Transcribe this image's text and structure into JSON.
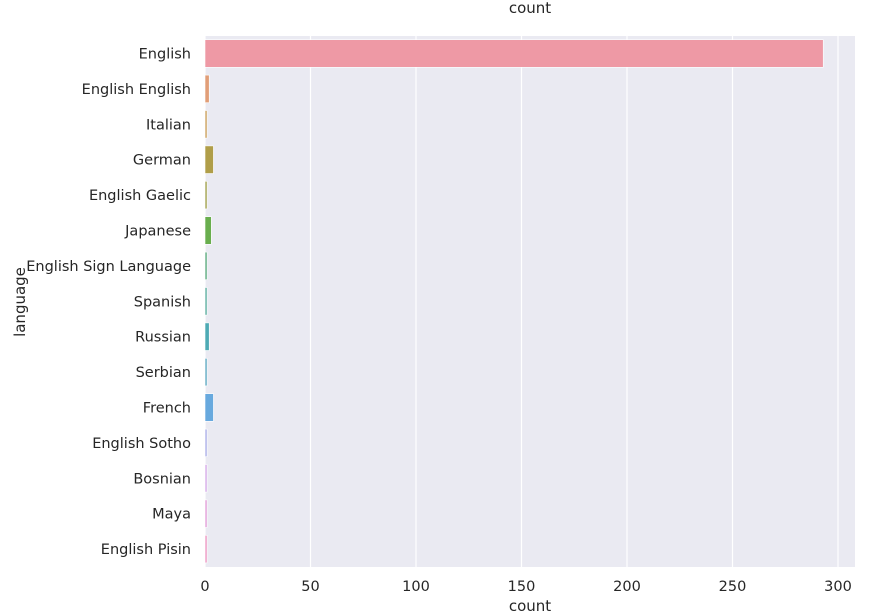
{
  "chart_data": {
    "type": "bar",
    "orientation": "horizontal",
    "title": "count",
    "xlabel": "count",
    "ylabel": "language",
    "xlim": [
      0,
      308
    ],
    "xticks": [
      0,
      50,
      100,
      150,
      200,
      250,
      300
    ],
    "grid": true,
    "categories": [
      "English",
      "English English",
      "Italian",
      "German",
      "English Gaelic",
      "Japanese",
      "English Sign Language",
      "Spanish",
      "Russian",
      "Serbian",
      "French",
      "English Sotho",
      "Bosnian",
      "Maya",
      "English Pisin"
    ],
    "values": [
      293,
      2,
      1,
      4,
      1,
      3,
      1,
      1,
      2,
      1,
      4,
      1,
      1,
      1,
      1
    ],
    "colors": [
      "#ee99a5",
      "#e19e78",
      "#cfa76a",
      "#b09e49",
      "#a9a95a",
      "#69ae4e",
      "#68b188",
      "#6ab5a7",
      "#4eaab4",
      "#6bb0c8",
      "#68a9de",
      "#b2b5ea",
      "#d8b1ea",
      "#e4a5dc",
      "#ee9fc7"
    ]
  }
}
